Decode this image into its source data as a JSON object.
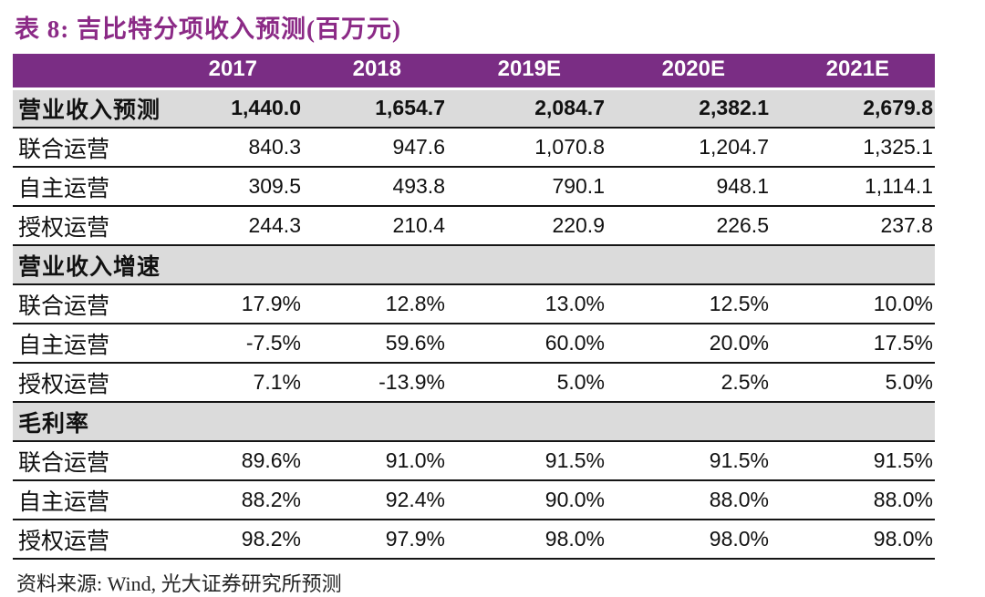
{
  "title": "表 8: 吉比特分项收入预测(百万元)",
  "colors": {
    "title": "#8B2A86",
    "header_bg": "#7A2D84",
    "section_bg": "#DBDBDB",
    "border": "#151515"
  },
  "table": {
    "columns": [
      "2017",
      "2018",
      "2019E",
      "2020E",
      "2021E"
    ],
    "sections": [
      {
        "header": {
          "label": "营业收入预测",
          "values": [
            "1,440.0",
            "1,654.7",
            "2,084.7",
            "2,382.1",
            "2,679.8"
          ]
        },
        "rows": [
          {
            "label": "联合运营",
            "values": [
              "840.3",
              "947.6",
              "1,070.8",
              "1,204.7",
              "1,325.1"
            ]
          },
          {
            "label": "自主运营",
            "values": [
              "309.5",
              "493.8",
              "790.1",
              "948.1",
              "1,114.1"
            ]
          },
          {
            "label": "授权运营",
            "values": [
              "244.3",
              "210.4",
              "220.9",
              "226.5",
              "237.8"
            ]
          }
        ]
      },
      {
        "header": {
          "label": "营业收入增速",
          "values": [
            "",
            "",
            "",
            "",
            ""
          ]
        },
        "rows": [
          {
            "label": "联合运营",
            "values": [
              "17.9%",
              "12.8%",
              "13.0%",
              "12.5%",
              "10.0%"
            ]
          },
          {
            "label": "自主运营",
            "values": [
              "-7.5%",
              "59.6%",
              "60.0%",
              "20.0%",
              "17.5%"
            ]
          },
          {
            "label": "授权运营",
            "values": [
              "7.1%",
              "-13.9%",
              "5.0%",
              "2.5%",
              "5.0%"
            ]
          }
        ]
      },
      {
        "header": {
          "label": "毛利率",
          "values": [
            "",
            "",
            "",
            "",
            ""
          ]
        },
        "rows": [
          {
            "label": "联合运营",
            "values": [
              "89.6%",
              "91.0%",
              "91.5%",
              "91.5%",
              "91.5%"
            ]
          },
          {
            "label": "自主运营",
            "values": [
              "88.2%",
              "92.4%",
              "90.0%",
              "88.0%",
              "88.0%"
            ]
          },
          {
            "label": "授权运营",
            "values": [
              "98.2%",
              "97.9%",
              "98.0%",
              "98.0%",
              "98.0%"
            ]
          }
        ]
      }
    ]
  },
  "footer": {
    "text": "资料来源: Wind, 光大证券研究所预测"
  }
}
